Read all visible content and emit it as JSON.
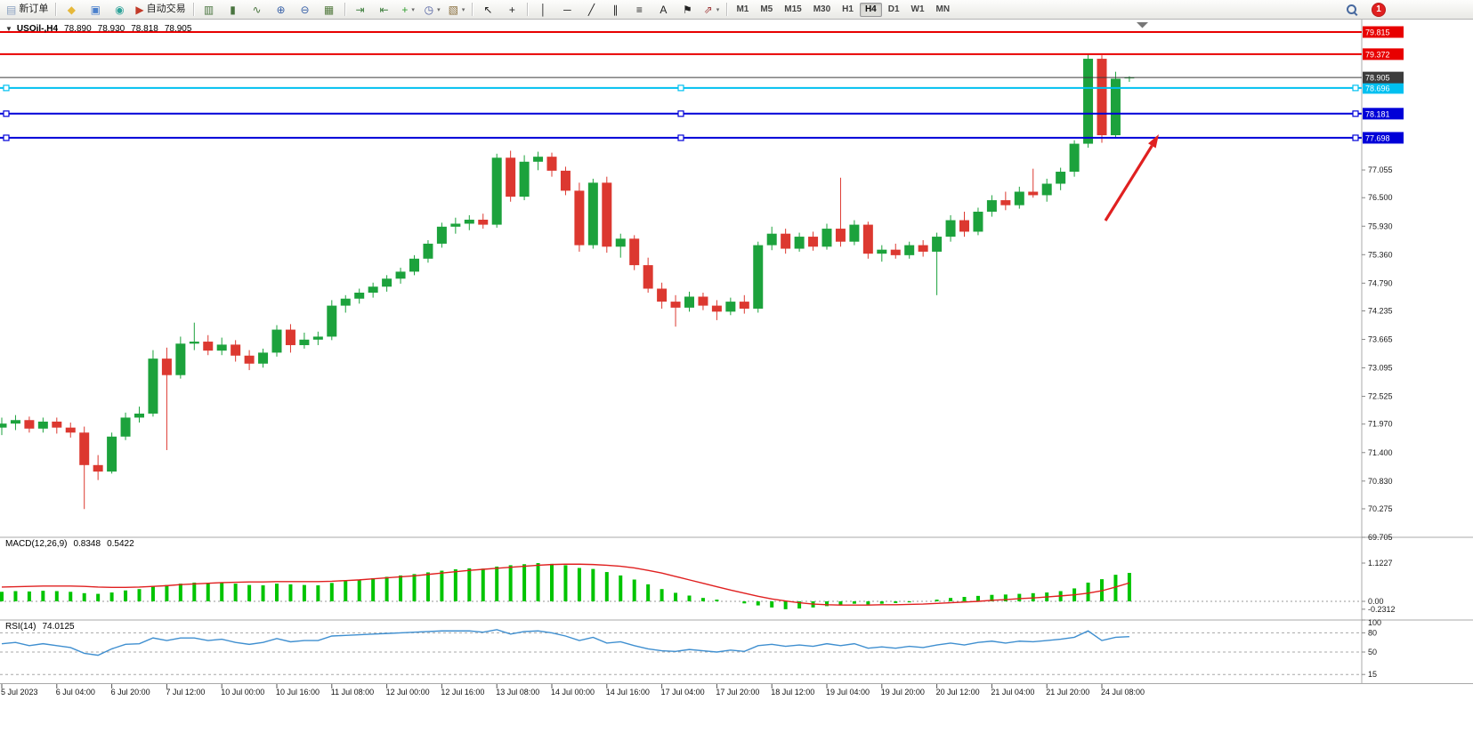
{
  "toolbar": {
    "dropdown_glyph": "▾",
    "items": [
      {
        "id": "new-order-button",
        "kind": "labeled",
        "icon": "new-order-icon",
        "glyph": "▤",
        "glyph_color": "#8aa0c0",
        "label": "新订单"
      },
      {
        "id": "toolbar-separator",
        "kind": "sep"
      },
      {
        "id": "metaeditor-button",
        "kind": "icon",
        "icon": "metaeditor-icon",
        "glyph": "◆",
        "glyph_color": "#e6b83a"
      },
      {
        "id": "market-watch-button",
        "kind": "icon",
        "icon": "market-watch-icon",
        "glyph": "▣",
        "glyph_color": "#4a80cc"
      },
      {
        "id": "community-button",
        "kind": "icon",
        "icon": "community-icon",
        "glyph": "◉",
        "glyph_color": "#2fa39a"
      },
      {
        "id": "autotrading-button",
        "kind": "labeled",
        "icon": "autotrading-icon",
        "glyph": "▶",
        "glyph_color": "#c23a28",
        "label": "自动交易"
      },
      {
        "id": "toolbar-separator",
        "kind": "sep"
      },
      {
        "id": "bar-chart-button",
        "kind": "icon",
        "icon": "bar-chart-icon",
        "glyph": "▥",
        "glyph_color": "#49743f"
      },
      {
        "id": "candlestick-button",
        "kind": "icon",
        "icon": "candlestick-icon",
        "glyph": "▮",
        "glyph_color": "#49743f"
      },
      {
        "id": "line-chart-button",
        "kind": "icon",
        "icon": "line-chart-icon",
        "glyph": "∿",
        "glyph_color": "#49743f"
      },
      {
        "id": "zoom-in-button",
        "kind": "icon",
        "icon": "zoom-in-icon",
        "glyph": "⊕",
        "glyph_color": "#3a62a8"
      },
      {
        "id": "zoom-out-button",
        "kind": "icon",
        "icon": "zoom-out-icon",
        "glyph": "⊖",
        "glyph_color": "#3a62a8"
      },
      {
        "id": "tile-windows-button",
        "kind": "icon",
        "icon": "tile-windows-icon",
        "glyph": "▦",
        "glyph_color": "#50783c"
      },
      {
        "id": "toolbar-separator",
        "kind": "sep"
      },
      {
        "id": "auto-scroll-button",
        "kind": "icon",
        "icon": "auto-scroll-icon",
        "glyph": "⇥",
        "glyph_color": "#3f7f3f"
      },
      {
        "id": "chart-shift-button",
        "kind": "icon",
        "icon": "chart-shift-icon",
        "glyph": "⇤",
        "glyph_color": "#3f7f3f"
      },
      {
        "id": "new-chart-button",
        "kind": "icon-drop",
        "icon": "new-chart-icon",
        "glyph": "+",
        "glyph_color": "#2f9e2f"
      },
      {
        "id": "periods-button",
        "kind": "icon-drop",
        "icon": "periods-icon",
        "glyph": "◷",
        "glyph_color": "#4a5a9e"
      },
      {
        "id": "templates-button",
        "kind": "icon-drop",
        "icon": "templates-icon",
        "glyph": "▧",
        "glyph_color": "#8a6f3f"
      },
      {
        "id": "toolbar-separator",
        "kind": "sep"
      },
      {
        "id": "cursor-button",
        "kind": "icon",
        "icon": "cursor-icon",
        "glyph": "↖",
        "glyph_color": "#222"
      },
      {
        "id": "crosshair-button",
        "kind": "icon",
        "icon": "crosshair-icon",
        "glyph": "+",
        "glyph_color": "#222"
      },
      {
        "id": "toolbar-separator",
        "kind": "sep"
      },
      {
        "id": "vertical-line-button",
        "kind": "icon",
        "icon": "vertical-line-icon",
        "glyph": "│",
        "glyph_color": "#222"
      },
      {
        "id": "horizontal-line-button",
        "kind": "icon",
        "icon": "horizontal-line-icon",
        "glyph": "─",
        "glyph_color": "#222"
      },
      {
        "id": "trendline-button",
        "kind": "icon",
        "icon": "trendline-icon",
        "glyph": "╱",
        "glyph_color": "#222"
      },
      {
        "id": "channel-button",
        "kind": "icon",
        "icon": "channel-icon",
        "glyph": "∥",
        "glyph_color": "#222"
      },
      {
        "id": "fibonacci-button",
        "kind": "icon",
        "icon": "fibonacci-icon",
        "glyph": "≡",
        "glyph_color": "#222"
      },
      {
        "id": "text-button",
        "kind": "icon",
        "icon": "text-icon",
        "glyph": "A",
        "glyph_color": "#222"
      },
      {
        "id": "text-label-button",
        "kind": "icon",
        "icon": "text-label-icon",
        "glyph": "⚑",
        "glyph_color": "#222"
      },
      {
        "id": "arrow-objects-button",
        "kind": "icon-drop",
        "icon": "arrow-objects-icon",
        "glyph": "⇗",
        "glyph_color": "#a03c3c"
      },
      {
        "id": "toolbar-separator",
        "kind": "sep"
      },
      {
        "id": "tf-M1",
        "kind": "tf",
        "label": "M1"
      },
      {
        "id": "tf-M5",
        "kind": "tf",
        "label": "M5"
      },
      {
        "id": "tf-M15",
        "kind": "tf",
        "label": "M15"
      },
      {
        "id": "tf-M30",
        "kind": "tf",
        "label": "M30"
      },
      {
        "id": "tf-H1",
        "kind": "tf",
        "label": "H1"
      },
      {
        "id": "tf-H4",
        "kind": "tf",
        "label": "H4",
        "active": true
      },
      {
        "id": "tf-D1",
        "kind": "tf",
        "label": "D1"
      },
      {
        "id": "tf-W1",
        "kind": "tf",
        "label": "W1"
      },
      {
        "id": "tf-MN",
        "kind": "tf",
        "label": "MN"
      },
      {
        "id": "toolbar-spacer",
        "kind": "spacer"
      },
      {
        "id": "search-button",
        "kind": "search",
        "icon": "search-icon"
      },
      {
        "id": "notification-badge",
        "kind": "badge",
        "label": "1"
      }
    ]
  },
  "chart": {
    "info": {
      "collapse_glyph": "▼",
      "symbol": "USOil-,H4",
      "open": "78.890",
      "high": "78.930",
      "low": "78.818",
      "close": "78.905"
    },
    "shift_marker_glyph": "▼",
    "price_axis_ticks": [
      "77.055",
      "76.500",
      "75.930",
      "75.360",
      "74.790",
      "74.235",
      "73.665",
      "73.095",
      "72.525",
      "71.970",
      "71.400",
      "70.830",
      "70.275",
      "69.705"
    ],
    "horizontal_lines": [
      {
        "name": "resistance-1",
        "label": "79.815",
        "value": 79.815,
        "color": "#e80000",
        "selected": false
      },
      {
        "name": "resistance-2",
        "label": "79.372",
        "value": 79.372,
        "color": "#e80000",
        "selected": false
      },
      {
        "name": "level-cyan",
        "label": "78.696",
        "value": 78.696,
        "color": "#00c0f0",
        "selected": true
      },
      {
        "name": "support-1",
        "label": "78.181",
        "value": 78.181,
        "color": "#0000d8",
        "selected": true
      },
      {
        "name": "support-2",
        "label": "77.698",
        "value": 77.698,
        "color": "#0000d8",
        "selected": true
      }
    ],
    "current_price": {
      "label": "78.905",
      "value": 78.905,
      "bg": "#3c3c3c"
    },
    "time_axis": {
      "labels": [
        "5 Jul 2023",
        "6 Jul 04:00",
        "6 Jul 20:00",
        "7 Jul 12:00",
        "10 Jul 00:00",
        "10 Jul 16:00",
        "11 Jul 08:00",
        "12 Jul 00:00",
        "12 Jul 16:00",
        "13 Jul 08:00",
        "14 Jul 00:00",
        "14 Jul 16:00",
        "17 Jul 04:00",
        "17 Jul 20:00",
        "18 Jul 12:00",
        "19 Jul 04:00",
        "19 Jul 20:00",
        "20 Jul 12:00",
        "21 Jul 04:00",
        "21 Jul 20:00",
        "24 Jul 08:00"
      ],
      "candle_indices": [
        0,
        4,
        8,
        12,
        16,
        20,
        24,
        28,
        32,
        36,
        40,
        44,
        48,
        52,
        56,
        60,
        64,
        68,
        72,
        76,
        80
      ]
    }
  },
  "chart_data": {
    "type": "candlestick",
    "symbol": "USOil",
    "period": "H4",
    "candles_ohlc": [
      [
        71.9,
        72.1,
        71.75,
        71.98
      ],
      [
        71.98,
        72.15,
        71.85,
        72.05
      ],
      [
        72.05,
        72.12,
        71.8,
        71.88
      ],
      [
        71.88,
        72.1,
        71.8,
        72.02
      ],
      [
        72.02,
        72.1,
        71.78,
        71.9
      ],
      [
        71.9,
        72.0,
        71.7,
        71.8
      ],
      [
        71.8,
        71.92,
        70.27,
        71.15
      ],
      [
        71.15,
        71.35,
        70.85,
        71.02
      ],
      [
        71.02,
        71.8,
        70.98,
        71.72
      ],
      [
        71.72,
        72.2,
        71.65,
        72.1
      ],
      [
        72.1,
        72.32,
        72.0,
        72.18
      ],
      [
        72.18,
        73.45,
        72.12,
        73.28
      ],
      [
        73.28,
        73.5,
        71.45,
        72.95
      ],
      [
        72.95,
        73.72,
        72.88,
        73.58
      ],
      [
        73.58,
        74.0,
        73.45,
        73.62
      ],
      [
        73.62,
        73.75,
        73.35,
        73.44
      ],
      [
        73.44,
        73.7,
        73.35,
        73.56
      ],
      [
        73.56,
        73.65,
        73.22,
        73.34
      ],
      [
        73.34,
        73.45,
        73.05,
        73.18
      ],
      [
        73.18,
        73.48,
        73.1,
        73.4
      ],
      [
        73.4,
        73.95,
        73.32,
        73.86
      ],
      [
        73.86,
        73.97,
        73.4,
        73.55
      ],
      [
        73.55,
        73.8,
        73.48,
        73.66
      ],
      [
        73.66,
        73.82,
        73.55,
        73.72
      ],
      [
        73.72,
        74.45,
        73.65,
        74.34
      ],
      [
        74.34,
        74.55,
        74.2,
        74.48
      ],
      [
        74.48,
        74.68,
        74.38,
        74.6
      ],
      [
        74.6,
        74.8,
        74.5,
        74.72
      ],
      [
        74.72,
        74.95,
        74.62,
        74.88
      ],
      [
        74.88,
        75.1,
        74.78,
        75.02
      ],
      [
        75.02,
        75.35,
        74.95,
        75.28
      ],
      [
        75.28,
        75.65,
        75.2,
        75.58
      ],
      [
        75.58,
        76.0,
        75.5,
        75.92
      ],
      [
        75.92,
        76.1,
        75.78,
        75.98
      ],
      [
        75.98,
        76.15,
        75.85,
        76.06
      ],
      [
        76.06,
        76.18,
        75.88,
        75.96
      ],
      [
        75.96,
        77.38,
        75.9,
        77.3
      ],
      [
        77.3,
        77.44,
        76.42,
        76.52
      ],
      [
        76.52,
        77.35,
        76.45,
        77.22
      ],
      [
        77.22,
        77.42,
        77.05,
        77.32
      ],
      [
        77.32,
        77.4,
        76.92,
        77.04
      ],
      [
        77.04,
        77.12,
        76.55,
        76.64
      ],
      [
        76.64,
        76.8,
        75.42,
        75.55
      ],
      [
        75.55,
        76.88,
        75.48,
        76.8
      ],
      [
        76.8,
        76.92,
        75.4,
        75.52
      ],
      [
        75.52,
        75.78,
        75.3,
        75.68
      ],
      [
        75.68,
        75.75,
        75.05,
        75.15
      ],
      [
        75.15,
        75.3,
        74.6,
        74.68
      ],
      [
        74.68,
        74.8,
        74.28,
        74.42
      ],
      [
        74.42,
        74.55,
        73.92,
        74.3
      ],
      [
        74.3,
        74.62,
        74.22,
        74.52
      ],
      [
        74.52,
        74.6,
        74.25,
        74.34
      ],
      [
        74.34,
        74.45,
        74.05,
        74.22
      ],
      [
        74.22,
        74.5,
        74.15,
        74.42
      ],
      [
        74.42,
        74.55,
        74.18,
        74.28
      ],
      [
        74.28,
        75.62,
        74.2,
        75.55
      ],
      [
        75.55,
        75.92,
        75.45,
        75.78
      ],
      [
        75.78,
        75.88,
        75.38,
        75.48
      ],
      [
        75.48,
        75.8,
        75.42,
        75.72
      ],
      [
        75.72,
        75.82,
        75.44,
        75.52
      ],
      [
        75.52,
        75.98,
        75.46,
        75.88
      ],
      [
        75.88,
        76.9,
        75.52,
        75.62
      ],
      [
        75.62,
        76.05,
        75.55,
        75.96
      ],
      [
        75.96,
        76.02,
        75.28,
        75.38
      ],
      [
        75.38,
        75.55,
        75.22,
        75.46
      ],
      [
        75.46,
        75.58,
        75.28,
        75.35
      ],
      [
        75.35,
        75.62,
        75.28,
        75.55
      ],
      [
        75.55,
        75.65,
        75.32,
        75.42
      ],
      [
        75.42,
        75.8,
        74.55,
        75.72
      ],
      [
        75.72,
        76.15,
        75.62,
        76.05
      ],
      [
        76.05,
        76.22,
        75.72,
        75.82
      ],
      [
        75.82,
        76.3,
        75.75,
        76.22
      ],
      [
        76.22,
        76.55,
        76.12,
        76.45
      ],
      [
        76.45,
        76.62,
        76.25,
        76.35
      ],
      [
        76.35,
        76.72,
        76.28,
        76.62
      ],
      [
        76.62,
        77.08,
        76.5,
        76.55
      ],
      [
        76.55,
        76.88,
        76.42,
        76.78
      ],
      [
        76.78,
        77.1,
        76.65,
        77.02
      ],
      [
        77.02,
        77.65,
        76.92,
        77.58
      ],
      [
        77.58,
        79.37,
        77.5,
        79.28
      ],
      [
        79.28,
        79.35,
        77.6,
        77.75
      ],
      [
        77.75,
        79.02,
        77.7,
        78.88
      ],
      [
        78.89,
        78.93,
        78.818,
        78.905
      ]
    ],
    "macd": {
      "title": "MACD(12,26,9)",
      "main_value": "0.8348",
      "signal_value": "0.5422",
      "axis_labels": [
        "1.1227",
        "0.00",
        "-0.2312"
      ],
      "histogram": [
        0.28,
        0.3,
        0.29,
        0.31,
        0.3,
        0.28,
        0.24,
        0.22,
        0.26,
        0.32,
        0.36,
        0.45,
        0.48,
        0.52,
        0.55,
        0.54,
        0.55,
        0.52,
        0.48,
        0.47,
        0.52,
        0.5,
        0.48,
        0.47,
        0.54,
        0.6,
        0.64,
        0.68,
        0.72,
        0.76,
        0.8,
        0.85,
        0.9,
        0.94,
        0.97,
        0.96,
        1.02,
        1.06,
        1.09,
        1.1227,
        1.1,
        1.06,
        0.98,
        0.95,
        0.86,
        0.76,
        0.64,
        0.5,
        0.36,
        0.25,
        0.17,
        0.1,
        0.05,
        0.0,
        -0.06,
        -0.12,
        -0.18,
        -0.2312,
        -0.21,
        -0.18,
        -0.14,
        -0.1,
        -0.07,
        -0.09,
        -0.07,
        -0.05,
        -0.03,
        0.0,
        0.05,
        0.1,
        0.13,
        0.16,
        0.19,
        0.2,
        0.22,
        0.24,
        0.26,
        0.3,
        0.38,
        0.55,
        0.65,
        0.78,
        0.8348
      ],
      "signal": [
        0.42,
        0.43,
        0.44,
        0.45,
        0.45,
        0.45,
        0.44,
        0.42,
        0.41,
        0.41,
        0.42,
        0.44,
        0.46,
        0.49,
        0.51,
        0.53,
        0.55,
        0.56,
        0.57,
        0.57,
        0.58,
        0.58,
        0.58,
        0.58,
        0.59,
        0.61,
        0.63,
        0.66,
        0.69,
        0.72,
        0.75,
        0.79,
        0.83,
        0.87,
        0.91,
        0.94,
        0.97,
        1.0,
        1.03,
        1.06,
        1.08,
        1.09,
        1.09,
        1.08,
        1.06,
        1.03,
        0.98,
        0.91,
        0.83,
        0.73,
        0.63,
        0.53,
        0.43,
        0.33,
        0.24,
        0.15,
        0.07,
        0.01,
        -0.04,
        -0.08,
        -0.1,
        -0.11,
        -0.11,
        -0.11,
        -0.1,
        -0.1,
        -0.09,
        -0.08,
        -0.06,
        -0.04,
        -0.02,
        0.0,
        0.03,
        0.05,
        0.08,
        0.1,
        0.13,
        0.16,
        0.19,
        0.24,
        0.31,
        0.42,
        0.5422
      ]
    },
    "rsi": {
      "title": "RSI(14)",
      "value": "74.0125",
      "axis_labels": [
        "100",
        "80",
        "50",
        "15"
      ],
      "levels": [
        80,
        50,
        15
      ],
      "values": [
        63,
        65,
        60,
        63,
        60,
        57,
        48,
        45,
        55,
        62,
        63,
        72,
        68,
        72,
        72,
        68,
        70,
        65,
        62,
        65,
        71,
        66,
        68,
        68,
        75,
        76,
        77,
        78,
        79,
        80,
        81,
        82,
        83,
        83,
        83,
        81,
        85,
        78,
        82,
        83,
        80,
        75,
        68,
        73,
        64,
        66,
        60,
        55,
        52,
        51,
        54,
        52,
        50,
        53,
        51,
        60,
        62,
        59,
        61,
        59,
        63,
        60,
        63,
        56,
        58,
        56,
        59,
        57,
        61,
        64,
        61,
        65,
        67,
        64,
        67,
        66,
        68,
        70,
        73,
        83,
        68,
        73,
        74.0125
      ]
    }
  },
  "annotations": {
    "trend_arrow": {
      "color": "#e02020",
      "from": [
        1242,
        248
      ],
      "to": [
        1302,
        151
      ]
    }
  },
  "colors": {
    "bull": "#1ca23c",
    "bear": "#dc3830",
    "macd_histogram": "#00c400",
    "macd_signal": "#e02020",
    "rsi_line": "#3f8fd0",
    "axis_text": "#1a1a1a",
    "separator": "#a8a8a8",
    "current_line": "#3c3c3c"
  }
}
